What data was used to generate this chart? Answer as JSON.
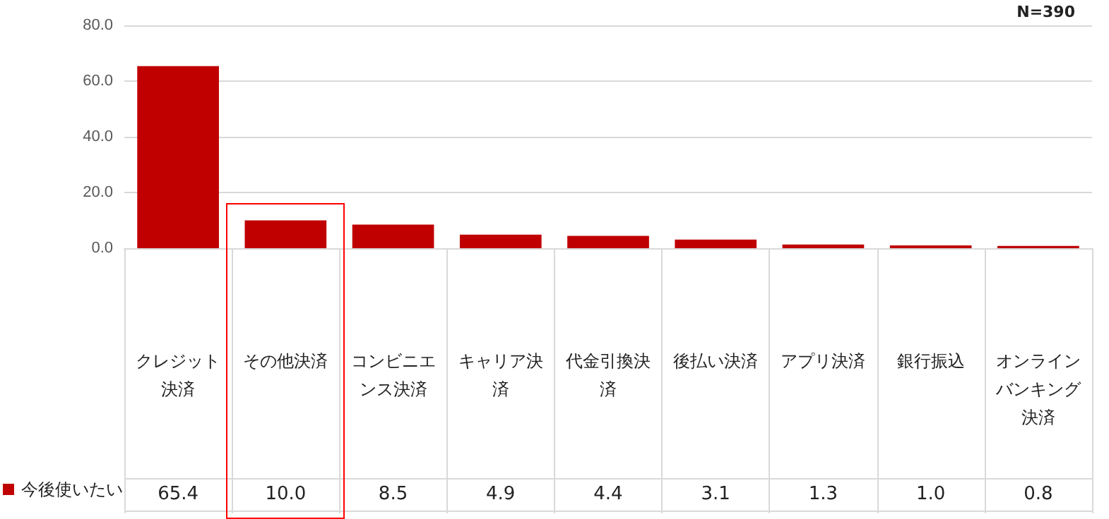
{
  "chart_data": {
    "type": "bar",
    "categories": [
      "クレジット決済",
      "その他決済",
      "コンビニエンス決済",
      "キャリア決済",
      "代金引換決済",
      "後払い決済",
      "アプリ決済",
      "銀行振込",
      "オンラインバンキング決済"
    ],
    "series": [
      {
        "name": "今後使いたい",
        "color": "#c00000",
        "values": [
          65.4,
          10.0,
          8.5,
          4.9,
          4.4,
          3.1,
          1.3,
          1.0,
          0.8
        ],
        "value_labels": [
          "65.4",
          "10.0",
          "8.5",
          "4.9",
          "4.4",
          "3.1",
          "1.3",
          "1.0",
          "0.8"
        ]
      }
    ],
    "ylim": [
      0,
      80
    ],
    "yticks": [
      {
        "value": 0,
        "label": "0.0"
      },
      {
        "value": 20,
        "label": "20.0"
      },
      {
        "value": 40,
        "label": "40.0"
      },
      {
        "value": 60,
        "label": "60.0"
      },
      {
        "value": 80,
        "label": "80.0"
      }
    ],
    "grid": "y",
    "legend": "bottom left",
    "annotations": [
      "N=390"
    ]
  }
}
